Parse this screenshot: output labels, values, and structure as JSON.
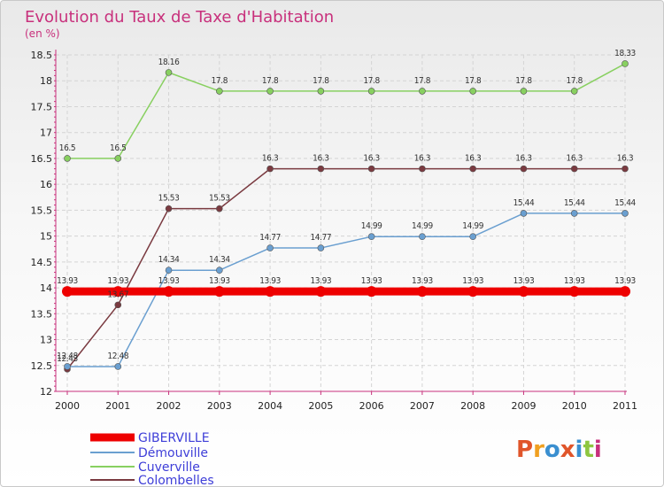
{
  "header": {
    "title": "Evolution du Taux de Taxe d'Habitation",
    "subtitle": "(en %)"
  },
  "logo": {
    "letters": [
      "P",
      "r",
      "o",
      "x",
      "i",
      "t",
      "i"
    ],
    "colors": [
      "#e0552a",
      "#f0a020",
      "#3a8fd0",
      "#e0552a",
      "#3a8fd0",
      "#8dc63f",
      "#c8307c"
    ]
  },
  "chart_data": {
    "type": "line",
    "title": "Evolution du Taux de Taxe d'Habitation",
    "subtitle": "(en %)",
    "x": [
      "2000",
      "2001",
      "2002",
      "2003",
      "2004",
      "2005",
      "2006",
      "2007",
      "2008",
      "2009",
      "2010",
      "2011"
    ],
    "ylim": [
      12,
      18.5
    ],
    "yticks": [
      "12",
      "12.5",
      "13",
      "13.5",
      "14",
      "14.5",
      "15",
      "15.5",
      "16",
      "16.5",
      "17",
      "17.5",
      "18",
      "18.5"
    ],
    "grid": true,
    "legend_position": "bottom-left",
    "series": [
      {
        "name": "GIBERVILLE",
        "color": "#ee0000",
        "values": [
          13.93,
          13.93,
          13.93,
          13.93,
          13.93,
          13.93,
          13.93,
          13.93,
          13.93,
          13.93,
          13.93,
          13.93
        ],
        "labels": [
          "13.93",
          "13.93",
          "13.93",
          "13.93",
          "13.93",
          "13.93",
          "13.93",
          "13.93",
          "13.93",
          "13.93",
          "13.93",
          "13.93"
        ]
      },
      {
        "name": "Démouville",
        "color": "#6a9fd0",
        "values": [
          12.48,
          12.48,
          14.34,
          14.34,
          14.77,
          14.77,
          14.99,
          14.99,
          14.99,
          15.44,
          15.44,
          15.44
        ],
        "labels": [
          "12.48",
          "12.48",
          "14.34",
          "14.34",
          "14.77",
          "14.77",
          "14.99",
          "14.99",
          "14.99",
          "15.44",
          "15.44",
          "15.44"
        ]
      },
      {
        "name": "Cuverville",
        "color": "#88d060",
        "values": [
          16.5,
          16.5,
          18.16,
          17.8,
          17.8,
          17.8,
          17.8,
          17.8,
          17.8,
          17.8,
          17.8,
          18.33
        ],
        "labels": [
          "16.5",
          "16.5",
          "18.16",
          "17.8",
          "17.8",
          "17.8",
          "17.8",
          "17.8",
          "17.8",
          "17.8",
          "17.8",
          "18.33"
        ]
      },
      {
        "name": "Colombelles",
        "color": "#7a3a40",
        "values": [
          12.43,
          13.67,
          15.53,
          15.53,
          16.3,
          16.3,
          16.3,
          16.3,
          16.3,
          16.3,
          16.3,
          16.3
        ],
        "labels": [
          "12.43",
          "13.67",
          "15.53",
          "15.53",
          "16.3",
          "16.3",
          "16.3",
          "16.3",
          "16.3",
          "16.3",
          "16.3",
          "16.3"
        ]
      }
    ]
  }
}
